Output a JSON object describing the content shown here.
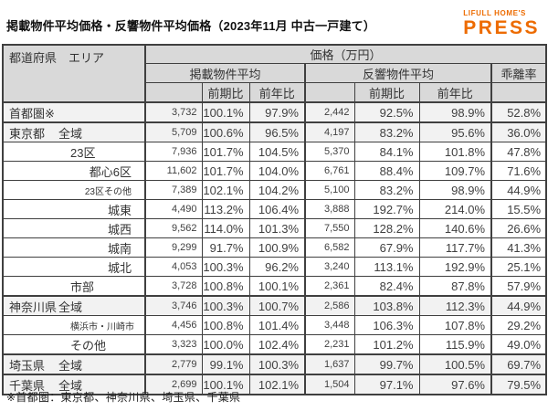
{
  "page": {
    "title": "掲載物件平均価格・反響物件平均価格（2023年11月 中古一戸建て）",
    "footnote": "※首都圏：東京都、神奈川県、埼玉県、千葉県"
  },
  "logo": {
    "top": "LIFULL HOME'S",
    "main": "PRESS",
    "color": "#ED6B00"
  },
  "colors": {
    "brand_orange": "#ED6B00",
    "header_bg": "#d9d9d9",
    "pref_row_bg": "#f2f2f2",
    "border_dark": "#404040"
  },
  "table": {
    "header": {
      "region": "都道府県　エリア",
      "price_group": "価格（万円）",
      "listed_group": "掲載物件平均",
      "inquiry_group": "反響物件平均",
      "rate": "乖離率",
      "prev_period": "前期比",
      "prev_year": "前年比"
    }
  },
  "chart_data": {
    "type": "table",
    "title": "掲載物件平均価格・反響物件平均価格（2023年11月 中古一戸建て）",
    "unit": "万円",
    "column_groups": {
      "price": "価格（万円）",
      "listed": "掲載物件平均",
      "inquiry": "反響物件平均"
    },
    "columns": [
      "都道府県 エリア",
      "掲載物件平均",
      "掲載 前期比",
      "掲載 前年比",
      "反響物件平均",
      "反響 前期比",
      "反響 前年比",
      "乖離率"
    ],
    "rows": [
      {
        "pref": "首都圏※",
        "area": "",
        "indent": 0,
        "compact": false,
        "values": [
          "3,732",
          "100.1%",
          "97.9%",
          "2,442",
          "92.5%",
          "98.9%",
          "52.8%"
        ]
      },
      {
        "pref": "東京都",
        "area": "全域",
        "indent": 0,
        "compact": false,
        "values": [
          "5,709",
          "100.6%",
          "96.5%",
          "4,197",
          "83.2%",
          "95.6%",
          "36.0%"
        ]
      },
      {
        "pref": "",
        "area": "23区",
        "indent": 1,
        "compact": false,
        "values": [
          "7,936",
          "101.7%",
          "104.5%",
          "5,370",
          "84.1%",
          "101.8%",
          "47.8%"
        ]
      },
      {
        "pref": "",
        "area": "都心6区",
        "indent": 2,
        "compact": false,
        "values": [
          "11,602",
          "101.7%",
          "104.0%",
          "6,761",
          "88.4%",
          "109.7%",
          "71.6%"
        ]
      },
      {
        "pref": "",
        "area": "23区その他",
        "indent": 2,
        "compact": true,
        "values": [
          "7,389",
          "102.1%",
          "104.2%",
          "5,100",
          "83.2%",
          "98.9%",
          "44.9%"
        ]
      },
      {
        "pref": "",
        "area": "城東",
        "indent": 2,
        "compact": false,
        "values": [
          "4,490",
          "113.2%",
          "106.4%",
          "3,888",
          "192.7%",
          "214.0%",
          "15.5%"
        ]
      },
      {
        "pref": "",
        "area": "城西",
        "indent": 2,
        "compact": false,
        "values": [
          "9,562",
          "114.0%",
          "101.3%",
          "7,550",
          "128.2%",
          "140.6%",
          "26.6%"
        ]
      },
      {
        "pref": "",
        "area": "城南",
        "indent": 2,
        "compact": false,
        "values": [
          "9,299",
          "91.7%",
          "100.9%",
          "6,582",
          "67.9%",
          "117.7%",
          "41.3%"
        ]
      },
      {
        "pref": "",
        "area": "城北",
        "indent": 2,
        "compact": false,
        "values": [
          "4,053",
          "100.3%",
          "96.2%",
          "3,240",
          "113.1%",
          "192.9%",
          "25.1%"
        ]
      },
      {
        "pref": "",
        "area": "市部",
        "indent": 1,
        "compact": false,
        "values": [
          "3,728",
          "100.8%",
          "100.1%",
          "2,361",
          "82.4%",
          "87.8%",
          "57.9%"
        ]
      },
      {
        "pref": "神奈川県",
        "area": "全域",
        "indent": 0,
        "compact": false,
        "values": [
          "3,746",
          "100.3%",
          "100.7%",
          "2,586",
          "103.8%",
          "112.3%",
          "44.9%"
        ]
      },
      {
        "pref": "",
        "area": "横浜市・川崎市",
        "indent": 1,
        "compact": true,
        "values": [
          "4,456",
          "100.8%",
          "101.4%",
          "3,448",
          "106.3%",
          "107.8%",
          "29.2%"
        ]
      },
      {
        "pref": "",
        "area": "その他",
        "indent": 1,
        "compact": false,
        "values": [
          "3,323",
          "100.0%",
          "102.4%",
          "2,231",
          "101.2%",
          "115.9%",
          "49.0%"
        ]
      },
      {
        "pref": "埼玉県",
        "area": "全域",
        "indent": 0,
        "compact": false,
        "values": [
          "2,779",
          "99.1%",
          "100.3%",
          "1,637",
          "99.7%",
          "100.5%",
          "69.7%"
        ]
      },
      {
        "pref": "千葉県",
        "area": "全域",
        "indent": 0,
        "compact": false,
        "values": [
          "2,699",
          "100.1%",
          "102.1%",
          "1,504",
          "97.1%",
          "97.6%",
          "79.5%"
        ]
      }
    ]
  }
}
